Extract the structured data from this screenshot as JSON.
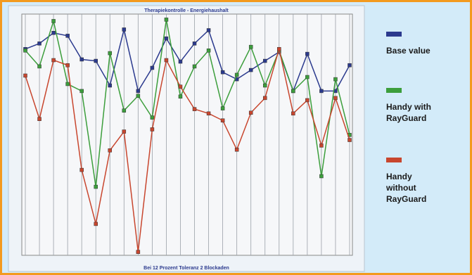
{
  "chart_data": {
    "type": "line",
    "title": "Therapiekontrolle - Energiehaushalt",
    "x_label": "Bei 12 Prozent Toleranz 2 Blockaden",
    "categories": [
      null,
      null,
      null,
      null,
      null,
      null,
      null,
      null,
      null,
      null,
      null,
      null,
      null,
      null,
      null,
      null,
      null,
      null,
      null,
      null,
      null,
      null,
      null,
      null
    ],
    "ylim": [
      0,
      100
    ],
    "series": [
      {
        "name": "Base value",
        "color": "#2b3a8e",
        "values": [
          85.5,
          87.8,
          92.2,
          91.0,
          81.2,
          80.6,
          70.4,
          93.6,
          68.1,
          77.7,
          89.9,
          80.3,
          87.8,
          93.3,
          75.9,
          73.0,
          76.8,
          80.6,
          84.3,
          68.1,
          83.5,
          68.1,
          68.1,
          78.8
        ]
      },
      {
        "name": "Handy with RayGuard",
        "color": "#3c9e3c",
        "values": [
          84.9,
          78.3,
          97.1,
          71.0,
          68.1,
          28.4,
          83.8,
          60.0,
          66.1,
          57.1,
          97.7,
          65.8,
          78.3,
          84.9,
          60.9,
          74.8,
          86.4,
          70.4,
          84.9,
          68.1,
          73.9,
          32.8,
          73.0,
          49.9
        ]
      },
      {
        "name": "Handy without RayGuard",
        "color": "#c8462e",
        "values": [
          74.5,
          56.5,
          80.9,
          78.8,
          35.4,
          13.0,
          43.5,
          51.3,
          1.4,
          52.2,
          80.9,
          69.9,
          60.6,
          58.8,
          55.9,
          43.8,
          59.1,
          65.2,
          85.5,
          58.8,
          64.3,
          45.5,
          65.2,
          47.8
        ]
      }
    ]
  }
}
